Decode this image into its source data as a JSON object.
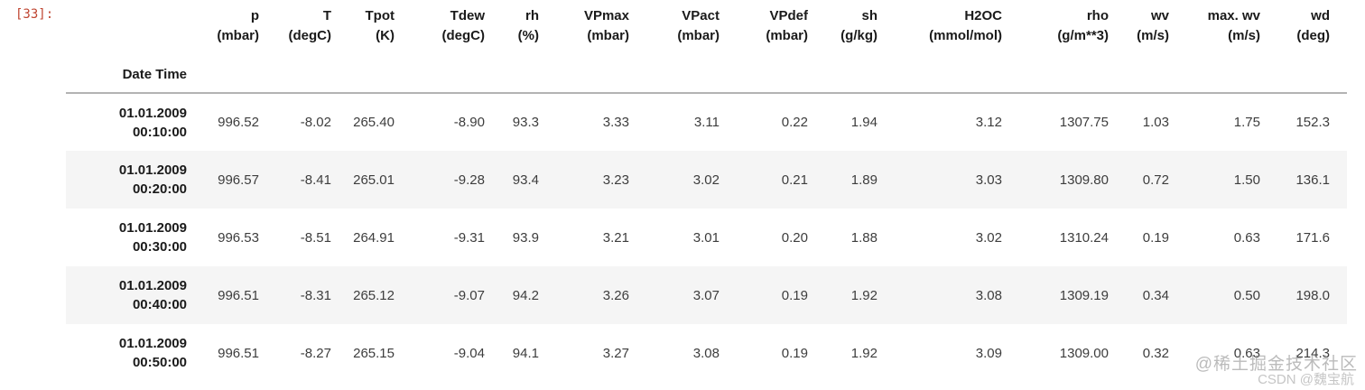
{
  "output_prompt": "[33]:",
  "colors": {
    "prompt_red": "#bf4430",
    "stripe_gray": "#f5f5f5",
    "header_rule_gray": "#b3b3b3"
  },
  "table": {
    "index_name": "Date Time",
    "columns": [
      {
        "name": "p",
        "unit": "(mbar)"
      },
      {
        "name": "T",
        "unit": "(degC)"
      },
      {
        "name": "Tpot",
        "unit": "(K)"
      },
      {
        "name": "Tdew",
        "unit": "(degC)"
      },
      {
        "name": "rh",
        "unit": "(%)"
      },
      {
        "name": "VPmax",
        "unit": "(mbar)"
      },
      {
        "name": "VPact",
        "unit": "(mbar)"
      },
      {
        "name": "VPdef",
        "unit": "(mbar)"
      },
      {
        "name": "sh",
        "unit": "(g/kg)"
      },
      {
        "name": "H2OC",
        "unit": "(mmol/mol)"
      },
      {
        "name": "rho",
        "unit": "(g/m**3)"
      },
      {
        "name": "wv",
        "unit": "(m/s)"
      },
      {
        "name": "max. wv",
        "unit": "(m/s)"
      },
      {
        "name": "wd",
        "unit": "(deg)"
      }
    ],
    "rows": [
      {
        "date": "01.01.2009",
        "time": "00:10:00",
        "values": [
          "996.52",
          "-8.02",
          "265.40",
          "-8.90",
          "93.3",
          "3.33",
          "3.11",
          "0.22",
          "1.94",
          "3.12",
          "1307.75",
          "1.03",
          "1.75",
          "152.3"
        ]
      },
      {
        "date": "01.01.2009",
        "time": "00:20:00",
        "values": [
          "996.57",
          "-8.41",
          "265.01",
          "-9.28",
          "93.4",
          "3.23",
          "3.02",
          "0.21",
          "1.89",
          "3.03",
          "1309.80",
          "0.72",
          "1.50",
          "136.1"
        ]
      },
      {
        "date": "01.01.2009",
        "time": "00:30:00",
        "values": [
          "996.53",
          "-8.51",
          "264.91",
          "-9.31",
          "93.9",
          "3.21",
          "3.01",
          "0.20",
          "1.88",
          "3.02",
          "1310.24",
          "0.19",
          "0.63",
          "171.6"
        ]
      },
      {
        "date": "01.01.2009",
        "time": "00:40:00",
        "values": [
          "996.51",
          "-8.31",
          "265.12",
          "-9.07",
          "94.2",
          "3.26",
          "3.07",
          "0.19",
          "1.92",
          "3.08",
          "1309.19",
          "0.34",
          "0.50",
          "198.0"
        ]
      },
      {
        "date": "01.01.2009",
        "time": "00:50:00",
        "values": [
          "996.51",
          "-8.27",
          "265.15",
          "-9.04",
          "94.1",
          "3.27",
          "3.08",
          "0.19",
          "1.92",
          "3.09",
          "1309.00",
          "0.32",
          "0.63",
          "214.3"
        ]
      }
    ]
  },
  "watermark": {
    "line1": "@稀土掘金技术社区",
    "line2": "CSDN @魏宝航"
  }
}
